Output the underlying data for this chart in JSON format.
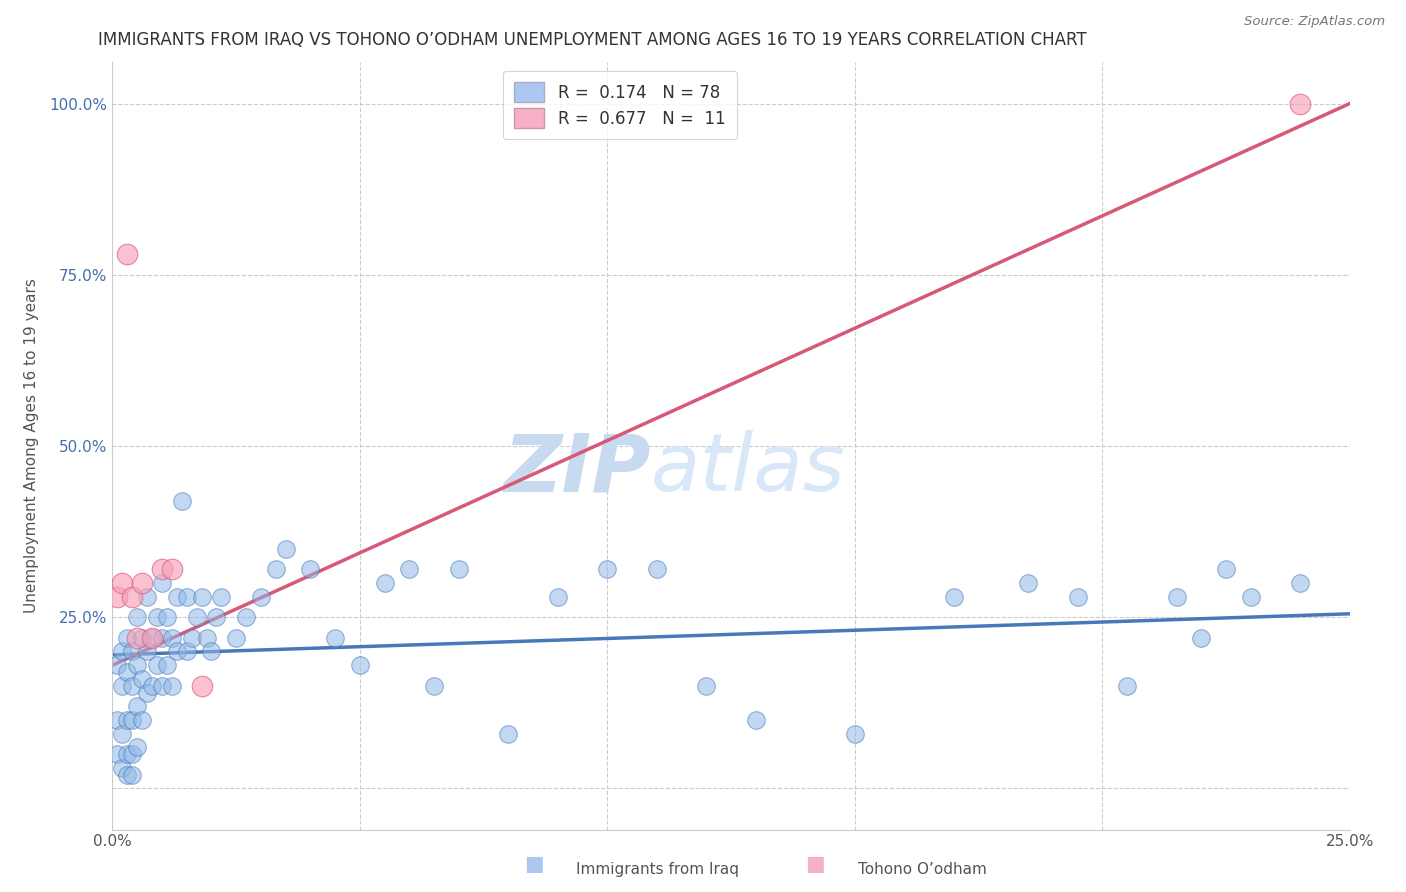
{
  "title": "IMMIGRANTS FROM IRAQ VS TOHONO O’ODHAM UNEMPLOYMENT AMONG AGES 16 TO 19 YEARS CORRELATION CHART",
  "source": "Source: ZipAtlas.com",
  "ylabel": "Unemployment Among Ages 16 to 19 years",
  "watermark_zip": "ZIP",
  "watermark_atlas": "atlas",
  "x_ticks": [
    0.0,
    0.05,
    0.1,
    0.15,
    0.2,
    0.25
  ],
  "x_tick_labels": [
    "0.0%",
    "",
    "",
    "",
    "",
    "25.0%"
  ],
  "y_ticks": [
    0.0,
    0.25,
    0.5,
    0.75,
    1.0
  ],
  "y_tick_labels": [
    "",
    "25.0%",
    "50.0%",
    "75.0%",
    "100.0%"
  ],
  "legend1_label": "R =  0.174   N = 78",
  "legend2_label": "R =  0.677   N =  11",
  "legend1_color": "#aac8f0",
  "legend2_color": "#f8b0c8",
  "series1_color": "#90b8e8",
  "series2_color": "#f8a0b8",
  "trendline1_color": "#4878b8",
  "trendline2_color": "#d85878",
  "xlim": [
    0.0,
    0.25
  ],
  "ylim": [
    -0.06,
    1.06
  ],
  "background_color": "#ffffff",
  "grid_color": "#cccccc",
  "title_fontsize": 12,
  "axis_label_fontsize": 11,
  "tick_fontsize": 11,
  "watermark_fontsize_zip": 58,
  "watermark_fontsize_atlas": 58,
  "watermark_color": "#ddeeff",
  "legend_fontsize": 12,
  "trendline1_y0": 0.195,
  "trendline1_y1": 0.255,
  "trendline2_y0": 0.18,
  "trendline2_y1": 1.0,
  "series1_x": [
    0.001,
    0.001,
    0.001,
    0.002,
    0.002,
    0.002,
    0.002,
    0.003,
    0.003,
    0.003,
    0.003,
    0.003,
    0.004,
    0.004,
    0.004,
    0.004,
    0.004,
    0.005,
    0.005,
    0.005,
    0.005,
    0.006,
    0.006,
    0.006,
    0.007,
    0.007,
    0.007,
    0.008,
    0.008,
    0.009,
    0.009,
    0.01,
    0.01,
    0.01,
    0.011,
    0.011,
    0.012,
    0.012,
    0.013,
    0.013,
    0.014,
    0.015,
    0.015,
    0.016,
    0.017,
    0.018,
    0.019,
    0.02,
    0.021,
    0.022,
    0.025,
    0.027,
    0.03,
    0.033,
    0.035,
    0.04,
    0.045,
    0.05,
    0.055,
    0.06,
    0.065,
    0.07,
    0.08,
    0.09,
    0.1,
    0.11,
    0.12,
    0.13,
    0.15,
    0.17,
    0.185,
    0.195,
    0.205,
    0.215,
    0.22,
    0.225,
    0.23,
    0.24
  ],
  "series1_y": [
    0.18,
    0.1,
    0.05,
    0.2,
    0.15,
    0.08,
    0.03,
    0.22,
    0.17,
    0.1,
    0.05,
    0.02,
    0.2,
    0.15,
    0.1,
    0.05,
    0.02,
    0.25,
    0.18,
    0.12,
    0.06,
    0.22,
    0.16,
    0.1,
    0.28,
    0.2,
    0.14,
    0.22,
    0.15,
    0.25,
    0.18,
    0.3,
    0.22,
    0.15,
    0.25,
    0.18,
    0.22,
    0.15,
    0.28,
    0.2,
    0.42,
    0.28,
    0.2,
    0.22,
    0.25,
    0.28,
    0.22,
    0.2,
    0.25,
    0.28,
    0.22,
    0.25,
    0.28,
    0.32,
    0.35,
    0.32,
    0.22,
    0.18,
    0.3,
    0.32,
    0.15,
    0.32,
    0.08,
    0.28,
    0.32,
    0.32,
    0.15,
    0.1,
    0.08,
    0.28,
    0.3,
    0.28,
    0.15,
    0.28,
    0.22,
    0.32,
    0.28,
    0.3
  ],
  "series2_x": [
    0.001,
    0.002,
    0.003,
    0.004,
    0.005,
    0.006,
    0.008,
    0.01,
    0.012,
    0.018,
    0.24
  ],
  "series2_y": [
    0.28,
    0.3,
    0.78,
    0.28,
    0.22,
    0.3,
    0.22,
    0.32,
    0.32,
    0.15,
    1.0
  ],
  "bottom_legend_items": [
    {
      "label": "Immigrants from Iraq",
      "color": "#aac8f0"
    },
    {
      "label": "Tohono O’odham",
      "color": "#f8b0c8"
    }
  ]
}
